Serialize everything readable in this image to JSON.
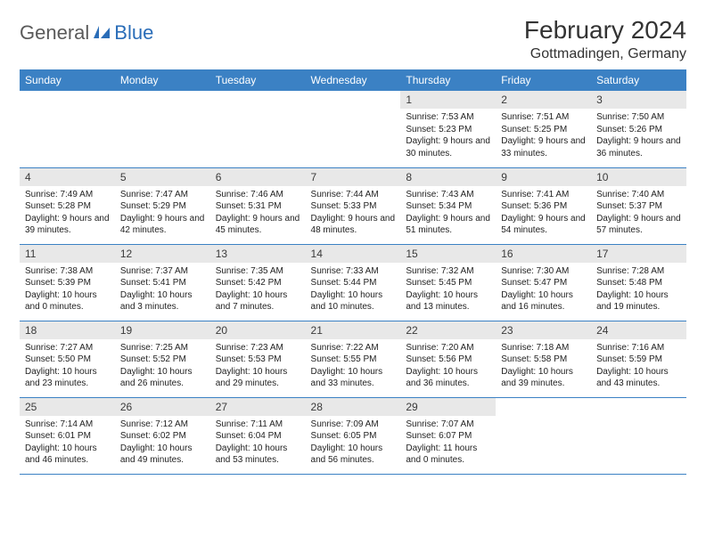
{
  "logo": {
    "part1": "General",
    "part2": "Blue"
  },
  "title": "February 2024",
  "location": "Gottmadingen, Germany",
  "colors": {
    "header_bg": "#3b81c4",
    "header_fg": "#ffffff",
    "daynum_bg": "#e8e8e8",
    "row_border": "#3b81c4",
    "logo_gray": "#5a5a5a",
    "logo_blue": "#2a6db8"
  },
  "day_names": [
    "Sunday",
    "Monday",
    "Tuesday",
    "Wednesday",
    "Thursday",
    "Friday",
    "Saturday"
  ],
  "weeks": [
    [
      null,
      null,
      null,
      null,
      {
        "n": "1",
        "sr": "7:53 AM",
        "ss": "5:23 PM",
        "dl": "9 hours and 30 minutes."
      },
      {
        "n": "2",
        "sr": "7:51 AM",
        "ss": "5:25 PM",
        "dl": "9 hours and 33 minutes."
      },
      {
        "n": "3",
        "sr": "7:50 AM",
        "ss": "5:26 PM",
        "dl": "9 hours and 36 minutes."
      }
    ],
    [
      {
        "n": "4",
        "sr": "7:49 AM",
        "ss": "5:28 PM",
        "dl": "9 hours and 39 minutes."
      },
      {
        "n": "5",
        "sr": "7:47 AM",
        "ss": "5:29 PM",
        "dl": "9 hours and 42 minutes."
      },
      {
        "n": "6",
        "sr": "7:46 AM",
        "ss": "5:31 PM",
        "dl": "9 hours and 45 minutes."
      },
      {
        "n": "7",
        "sr": "7:44 AM",
        "ss": "5:33 PM",
        "dl": "9 hours and 48 minutes."
      },
      {
        "n": "8",
        "sr": "7:43 AM",
        "ss": "5:34 PM",
        "dl": "9 hours and 51 minutes."
      },
      {
        "n": "9",
        "sr": "7:41 AM",
        "ss": "5:36 PM",
        "dl": "9 hours and 54 minutes."
      },
      {
        "n": "10",
        "sr": "7:40 AM",
        "ss": "5:37 PM",
        "dl": "9 hours and 57 minutes."
      }
    ],
    [
      {
        "n": "11",
        "sr": "7:38 AM",
        "ss": "5:39 PM",
        "dl": "10 hours and 0 minutes."
      },
      {
        "n": "12",
        "sr": "7:37 AM",
        "ss": "5:41 PM",
        "dl": "10 hours and 3 minutes."
      },
      {
        "n": "13",
        "sr": "7:35 AM",
        "ss": "5:42 PM",
        "dl": "10 hours and 7 minutes."
      },
      {
        "n": "14",
        "sr": "7:33 AM",
        "ss": "5:44 PM",
        "dl": "10 hours and 10 minutes."
      },
      {
        "n": "15",
        "sr": "7:32 AM",
        "ss": "5:45 PM",
        "dl": "10 hours and 13 minutes."
      },
      {
        "n": "16",
        "sr": "7:30 AM",
        "ss": "5:47 PM",
        "dl": "10 hours and 16 minutes."
      },
      {
        "n": "17",
        "sr": "7:28 AM",
        "ss": "5:48 PM",
        "dl": "10 hours and 19 minutes."
      }
    ],
    [
      {
        "n": "18",
        "sr": "7:27 AM",
        "ss": "5:50 PM",
        "dl": "10 hours and 23 minutes."
      },
      {
        "n": "19",
        "sr": "7:25 AM",
        "ss": "5:52 PM",
        "dl": "10 hours and 26 minutes."
      },
      {
        "n": "20",
        "sr": "7:23 AM",
        "ss": "5:53 PM",
        "dl": "10 hours and 29 minutes."
      },
      {
        "n": "21",
        "sr": "7:22 AM",
        "ss": "5:55 PM",
        "dl": "10 hours and 33 minutes."
      },
      {
        "n": "22",
        "sr": "7:20 AM",
        "ss": "5:56 PM",
        "dl": "10 hours and 36 minutes."
      },
      {
        "n": "23",
        "sr": "7:18 AM",
        "ss": "5:58 PM",
        "dl": "10 hours and 39 minutes."
      },
      {
        "n": "24",
        "sr": "7:16 AM",
        "ss": "5:59 PM",
        "dl": "10 hours and 43 minutes."
      }
    ],
    [
      {
        "n": "25",
        "sr": "7:14 AM",
        "ss": "6:01 PM",
        "dl": "10 hours and 46 minutes."
      },
      {
        "n": "26",
        "sr": "7:12 AM",
        "ss": "6:02 PM",
        "dl": "10 hours and 49 minutes."
      },
      {
        "n": "27",
        "sr": "7:11 AM",
        "ss": "6:04 PM",
        "dl": "10 hours and 53 minutes."
      },
      {
        "n": "28",
        "sr": "7:09 AM",
        "ss": "6:05 PM",
        "dl": "10 hours and 56 minutes."
      },
      {
        "n": "29",
        "sr": "7:07 AM",
        "ss": "6:07 PM",
        "dl": "11 hours and 0 minutes."
      },
      null,
      null
    ]
  ],
  "labels": {
    "sunrise": "Sunrise: ",
    "sunset": "Sunset: ",
    "daylight": "Daylight: "
  }
}
